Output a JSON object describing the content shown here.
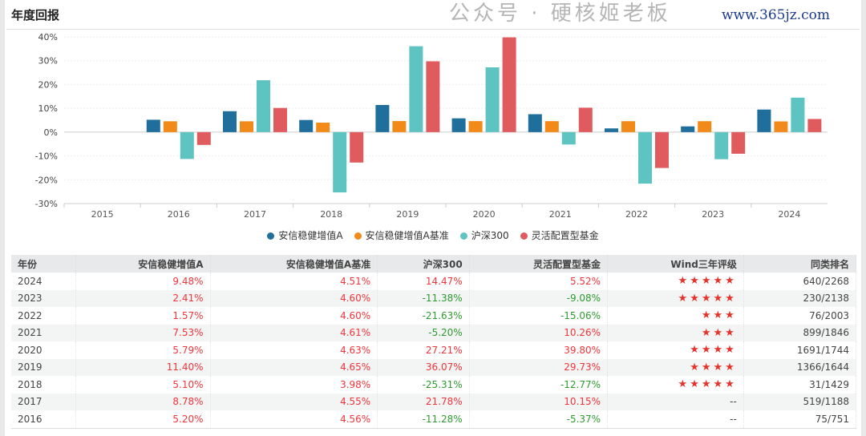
{
  "title": "年度回报",
  "chart_data": {
    "type": "bar",
    "categories": [
      "2015",
      "2016",
      "2017",
      "2018",
      "2019",
      "2020",
      "2021",
      "2022",
      "2023",
      "2024"
    ],
    "ylim": [
      -30,
      40
    ],
    "yticks": [
      "-30%",
      "-20%",
      "-10%",
      "0%",
      "10%",
      "20%",
      "30%",
      "40%"
    ],
    "grid": true,
    "legend_position": "bottom",
    "series": [
      {
        "name": "安信稳健增值A",
        "color": "#1f6e9c",
        "values": [
          null,
          5.2,
          8.78,
          5.1,
          11.4,
          5.79,
          7.53,
          1.57,
          2.41,
          9.48
        ]
      },
      {
        "name": "安信稳健增值A基准",
        "color": "#f28a1a",
        "values": [
          null,
          4.56,
          4.55,
          3.98,
          4.65,
          4.63,
          4.61,
          4.6,
          4.6,
          4.51
        ]
      },
      {
        "name": "沪深300",
        "color": "#5ec4c1",
        "values": [
          null,
          -11.28,
          21.78,
          -25.31,
          36.07,
          27.21,
          -5.2,
          -21.63,
          -11.38,
          14.47
        ]
      },
      {
        "name": "灵活配置型基金",
        "color": "#e05b5e",
        "values": [
          null,
          -5.37,
          10.15,
          -12.77,
          29.73,
          39.8,
          10.26,
          -15.06,
          -9.08,
          5.52
        ]
      }
    ]
  },
  "table": {
    "headers": [
      "年份",
      "安信稳健增值A",
      "安信稳健增值A基准",
      "沪深300",
      "灵活配置型基金",
      "Wind三年评级",
      "同类排名"
    ],
    "rows": [
      [
        "2024",
        "9.48%",
        "4.51%",
        "14.47%",
        "5.52%",
        "★★★★★",
        "640/2268"
      ],
      [
        "2023",
        "2.41%",
        "4.60%",
        "-11.38%",
        "-9.08%",
        "★★★★★",
        "230/2138"
      ],
      [
        "2022",
        "1.57%",
        "4.60%",
        "-21.63%",
        "-15.06%",
        "★★★",
        "76/2003"
      ],
      [
        "2021",
        "7.53%",
        "4.61%",
        "-5.20%",
        "10.26%",
        "★★★",
        "899/1846"
      ],
      [
        "2020",
        "5.79%",
        "4.63%",
        "27.21%",
        "39.80%",
        "★★★★",
        "1691/1744"
      ],
      [
        "2019",
        "11.40%",
        "4.65%",
        "36.07%",
        "29.73%",
        "★★★★",
        "1366/1644"
      ],
      [
        "2018",
        "5.10%",
        "3.98%",
        "-25.31%",
        "-12.77%",
        "★★★★★",
        "31/1429"
      ],
      [
        "2017",
        "8.78%",
        "4.55%",
        "21.78%",
        "10.15%",
        "--",
        "519/1188"
      ],
      [
        "2016",
        "5.20%",
        "4.56%",
        "-11.28%",
        "-5.37%",
        "--",
        "75/751"
      ]
    ]
  },
  "watermark": "公众号 · 硬核姬老板",
  "watermark_url": "www.365jz.com"
}
